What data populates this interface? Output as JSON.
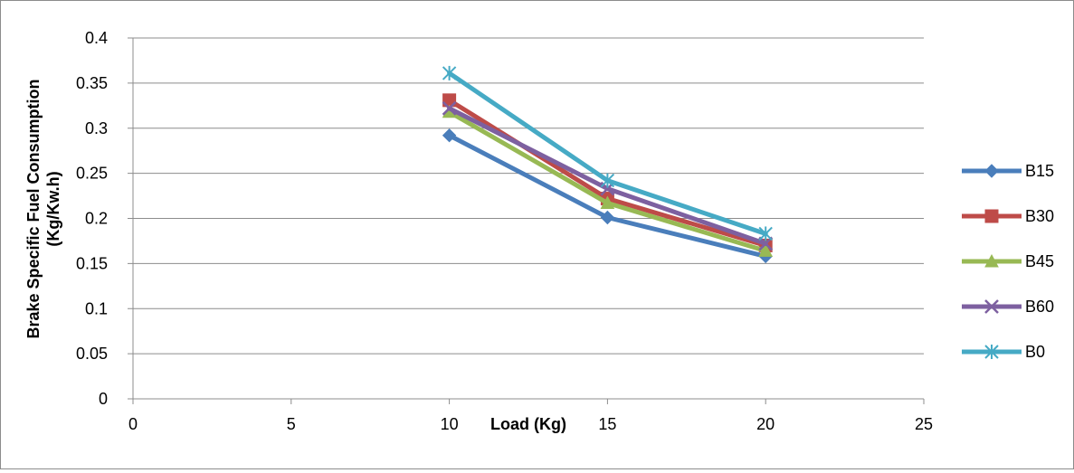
{
  "chart_data": {
    "type": "line",
    "title": "",
    "xlabel": "Load (Kg)",
    "ylabel_lines": [
      "Brake Specific Fuel Consumption",
      "(Kg/Kw.h)"
    ],
    "xlim": [
      0,
      25
    ],
    "ylim": [
      0,
      0.4
    ],
    "x_ticks": [
      0,
      5,
      10,
      15,
      20,
      25
    ],
    "x_tick_labels": [
      "0",
      "5",
      "10",
      "15",
      "20",
      "25"
    ],
    "y_ticks": [
      0,
      0.05,
      0.1,
      0.15,
      0.2,
      0.25,
      0.3,
      0.35,
      0.4
    ],
    "y_tick_labels": [
      "0",
      "0.05",
      "0.1",
      "0.15",
      "0.2",
      "0.25",
      "0.3",
      "0.35",
      "0.4"
    ],
    "grid": "horizontal",
    "legend_position": "right",
    "x": [
      10,
      15,
      20
    ],
    "series": [
      {
        "name": "B15",
        "values": [
          0.292,
          0.201,
          0.158
        ],
        "color": "#4a7ebb",
        "marker": "diamond"
      },
      {
        "name": "B30",
        "values": [
          0.331,
          0.222,
          0.17
        ],
        "color": "#be4b48",
        "marker": "square"
      },
      {
        "name": "B45",
        "values": [
          0.318,
          0.217,
          0.164
        ],
        "color": "#98b954",
        "marker": "triangle"
      },
      {
        "name": "B60",
        "values": [
          0.322,
          0.233,
          0.172
        ],
        "color": "#7d60a0",
        "marker": "x"
      },
      {
        "name": "B0",
        "values": [
          0.361,
          0.242,
          0.183
        ],
        "color": "#46aac5",
        "marker": "star"
      }
    ]
  }
}
